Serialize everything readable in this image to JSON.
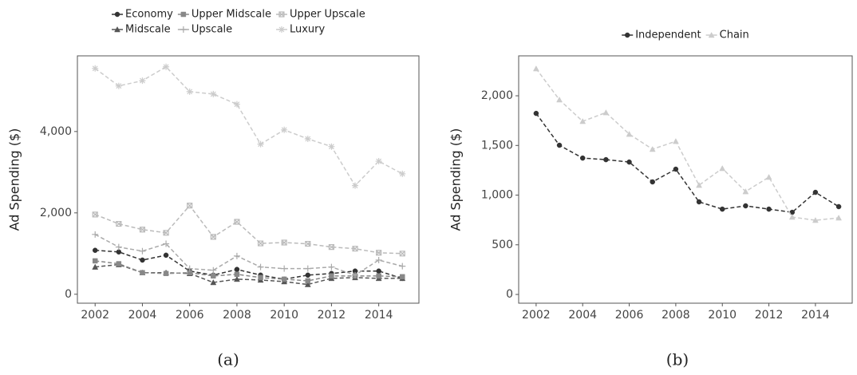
{
  "chart_data": [
    {
      "type": "line",
      "caption": "(a)",
      "y_label": "Ad Spending ($)",
      "x": [
        2002,
        2003,
        2004,
        2005,
        2006,
        2007,
        2008,
        2009,
        2010,
        2011,
        2012,
        2013,
        2014,
        2015
      ],
      "xlim": [
        2001.25,
        2015.7
      ],
      "xticks": [
        2002,
        2004,
        2006,
        2008,
        2010,
        2012,
        2014
      ],
      "ylim": [
        -220,
        5860
      ],
      "yticks": [
        0,
        {
          "value": 2000,
          "label": "2,000"
        },
        {
          "value": 4000,
          "label": "4,000"
        }
      ],
      "legend": "top",
      "legend_rows": 2,
      "series": [
        {
          "name": "Economy",
          "color": "#333333",
          "marker": "circle",
          "values": [
            1080,
            1040,
            840,
            960,
            570,
            470,
            610,
            470,
            370,
            470,
            510,
            570,
            570,
            390
          ]
        },
        {
          "name": "Midscale",
          "color": "#555555",
          "marker": "triangle",
          "values": [
            670,
            730,
            530,
            530,
            510,
            290,
            370,
            350,
            310,
            240,
            390,
            410,
            390,
            390
          ]
        },
        {
          "name": "Upper Midscale",
          "color": "#888888",
          "marker": "square",
          "values": [
            820,
            750,
            530,
            510,
            530,
            450,
            490,
            410,
            370,
            330,
            450,
            450,
            450,
            430
          ]
        },
        {
          "name": "Upscale",
          "color": "#aaaaaa",
          "marker": "plus",
          "values": [
            1470,
            1160,
            1060,
            1240,
            630,
            590,
            940,
            670,
            630,
            630,
            670,
            470,
            840,
            690
          ]
        },
        {
          "name": "Upper Upscale",
          "color": "#bbbbbb",
          "marker": "square-x",
          "values": [
            1960,
            1730,
            1590,
            1510,
            2180,
            1410,
            1780,
            1250,
            1270,
            1240,
            1160,
            1120,
            1020,
            1000
          ]
        },
        {
          "name": "Luxury",
          "color": "#cccccc",
          "marker": "star",
          "values": [
            5550,
            5120,
            5250,
            5590,
            4980,
            4920,
            4670,
            3690,
            4040,
            3820,
            3630,
            2670,
            3270,
            2960
          ]
        }
      ]
    },
    {
      "type": "line",
      "caption": "(b)",
      "y_label": "Ad Spending ($)",
      "x": [
        2002,
        2003,
        2004,
        2005,
        2006,
        2007,
        2008,
        2009,
        2010,
        2011,
        2012,
        2013,
        2014,
        2015
      ],
      "xlim": [
        2001.25,
        2015.58
      ],
      "xticks": [
        2002,
        2004,
        2006,
        2008,
        2010,
        2012,
        2014
      ],
      "ylim": [
        -88,
        2402
      ],
      "yticks": [
        0,
        500,
        {
          "value": 1000,
          "label": "1,000"
        },
        {
          "value": 1500,
          "label": "1,500"
        },
        {
          "value": 2000,
          "label": "2,000"
        }
      ],
      "legend": "top",
      "legend_rows": 1,
      "series": [
        {
          "name": "Independent",
          "color": "#333333",
          "marker": "circle",
          "values": [
            1823,
            1502,
            1373,
            1357,
            1333,
            1133,
            1261,
            932,
            859,
            892,
            859,
            827,
            1028,
            884
          ]
        },
        {
          "name": "Chain",
          "color": "#cccccc",
          "marker": "triangle",
          "values": [
            2273,
            1960,
            1743,
            1831,
            1614,
            1462,
            1542,
            1100,
            1269,
            1036,
            1181,
            779,
            747,
            771
          ]
        }
      ]
    }
  ]
}
